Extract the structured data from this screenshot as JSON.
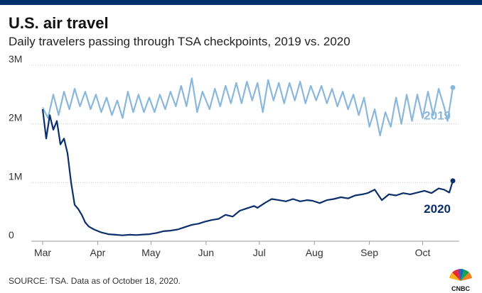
{
  "header": {
    "title": "U.S. air travel",
    "subtitle": "Daily travelers passing through TSA checkpoints, 2019 vs. 2020"
  },
  "footer": {
    "source": "SOURCE: TSA. Data as of October 18, 2020.",
    "logo_text": "CNBC"
  },
  "colors": {
    "top_bar": "#002f6c",
    "series_2019": "#8ab8db",
    "series_2020": "#0b2f6b",
    "gridline": "#cccccc"
  },
  "chart_data": {
    "type": "line",
    "title": "U.S. air travel",
    "subtitle": "Daily travelers passing through TSA checkpoints, 2019 vs. 2020",
    "xlabel": "",
    "ylabel": "",
    "x_tick_labels": [
      "Mar",
      "Apr",
      "May",
      "Jun",
      "Jul",
      "Aug",
      "Sep",
      "Oct"
    ],
    "x_tick_dates": [
      "2020-03-01",
      "2020-04-01",
      "2020-05-01",
      "2020-06-01",
      "2020-07-01",
      "2020-08-01",
      "2020-09-01",
      "2020-10-01"
    ],
    "y_ticks": [
      0,
      1000000,
      2000000,
      3000000
    ],
    "y_tick_labels": [
      "0",
      "1M",
      "2M",
      "3M"
    ],
    "xlim": [
      "2020-03-01",
      "2020-10-18"
    ],
    "ylim": [
      0,
      3000000
    ],
    "grid": "horizontal",
    "series": [
      {
        "name": "2019",
        "color": "#8ab8db",
        "points": [
          [
            "2020-03-01",
            2280000
          ],
          [
            "2020-03-04",
            2100000
          ],
          [
            "2020-03-07",
            2500000
          ],
          [
            "2020-03-10",
            2150000
          ],
          [
            "2020-03-13",
            2550000
          ],
          [
            "2020-03-16",
            2250000
          ],
          [
            "2020-03-19",
            2600000
          ],
          [
            "2020-03-22",
            2300000
          ],
          [
            "2020-03-25",
            2550000
          ],
          [
            "2020-03-28",
            2250000
          ],
          [
            "2020-03-31",
            2500000
          ],
          [
            "2020-04-03",
            2200000
          ],
          [
            "2020-04-06",
            2450000
          ],
          [
            "2020-04-09",
            2150000
          ],
          [
            "2020-04-12",
            2400000
          ],
          [
            "2020-04-15",
            2100000
          ],
          [
            "2020-04-18",
            2550000
          ],
          [
            "2020-04-21",
            2200000
          ],
          [
            "2020-04-24",
            2500000
          ],
          [
            "2020-04-27",
            2200000
          ],
          [
            "2020-04-30",
            2450000
          ],
          [
            "2020-05-03",
            2200000
          ],
          [
            "2020-05-06",
            2500000
          ],
          [
            "2020-05-09",
            2250000
          ],
          [
            "2020-05-12",
            2550000
          ],
          [
            "2020-05-15",
            2300000
          ],
          [
            "2020-05-18",
            2650000
          ],
          [
            "2020-05-21",
            2300000
          ],
          [
            "2020-05-24",
            2780000
          ],
          [
            "2020-05-27",
            2200000
          ],
          [
            "2020-05-30",
            2550000
          ],
          [
            "2020-06-03",
            2250000
          ],
          [
            "2020-06-06",
            2600000
          ],
          [
            "2020-06-09",
            2300000
          ],
          [
            "2020-06-12",
            2650000
          ],
          [
            "2020-06-15",
            2350000
          ],
          [
            "2020-06-18",
            2700000
          ],
          [
            "2020-06-21",
            2350000
          ],
          [
            "2020-06-24",
            2720000
          ],
          [
            "2020-06-27",
            2400000
          ],
          [
            "2020-06-30",
            2700000
          ],
          [
            "2020-07-03",
            2200000
          ],
          [
            "2020-07-06",
            2750000
          ],
          [
            "2020-07-09",
            2400000
          ],
          [
            "2020-07-12",
            2700000
          ],
          [
            "2020-07-15",
            2350000
          ],
          [
            "2020-07-18",
            2700000
          ],
          [
            "2020-07-21",
            2400000
          ],
          [
            "2020-07-24",
            2720000
          ],
          [
            "2020-07-27",
            2350000
          ],
          [
            "2020-07-30",
            2650000
          ],
          [
            "2020-08-02",
            2400000
          ],
          [
            "2020-08-05",
            2650000
          ],
          [
            "2020-08-08",
            2350000
          ],
          [
            "2020-08-11",
            2600000
          ],
          [
            "2020-08-14",
            2300000
          ],
          [
            "2020-08-17",
            2550000
          ],
          [
            "2020-08-20",
            2250000
          ],
          [
            "2020-08-23",
            2500000
          ],
          [
            "2020-08-26",
            2150000
          ],
          [
            "2020-08-29",
            2450000
          ],
          [
            "2020-09-01",
            1950000
          ],
          [
            "2020-09-04",
            2250000
          ],
          [
            "2020-09-07",
            1800000
          ],
          [
            "2020-09-10",
            2200000
          ],
          [
            "2020-09-13",
            1950000
          ],
          [
            "2020-09-16",
            2450000
          ],
          [
            "2020-09-19",
            2000000
          ],
          [
            "2020-09-22",
            2500000
          ],
          [
            "2020-09-25",
            2050000
          ],
          [
            "2020-09-28",
            2500000
          ],
          [
            "2020-10-01",
            2100000
          ],
          [
            "2020-10-04",
            2550000
          ],
          [
            "2020-10-07",
            2150000
          ],
          [
            "2020-10-10",
            2600000
          ],
          [
            "2020-10-13",
            2300000
          ],
          [
            "2020-10-15",
            2050000
          ],
          [
            "2020-10-18",
            2620000
          ]
        ]
      },
      {
        "name": "2020",
        "color": "#0b2f6b",
        "points": [
          [
            "2020-03-01",
            2250000
          ],
          [
            "2020-03-03",
            1750000
          ],
          [
            "2020-03-05",
            2150000
          ],
          [
            "2020-03-07",
            1900000
          ],
          [
            "2020-03-09",
            2050000
          ],
          [
            "2020-03-11",
            1650000
          ],
          [
            "2020-03-13",
            1750000
          ],
          [
            "2020-03-15",
            1500000
          ],
          [
            "2020-03-17",
            1000000
          ],
          [
            "2020-03-19",
            620000
          ],
          [
            "2020-03-21",
            550000
          ],
          [
            "2020-03-23",
            450000
          ],
          [
            "2020-03-25",
            320000
          ],
          [
            "2020-03-27",
            250000
          ],
          [
            "2020-03-30",
            200000
          ],
          [
            "2020-04-03",
            150000
          ],
          [
            "2020-04-07",
            120000
          ],
          [
            "2020-04-11",
            110000
          ],
          [
            "2020-04-15",
            100000
          ],
          [
            "2020-04-19",
            110000
          ],
          [
            "2020-04-23",
            105000
          ],
          [
            "2020-04-27",
            115000
          ],
          [
            "2020-04-30",
            120000
          ],
          [
            "2020-05-04",
            140000
          ],
          [
            "2020-05-08",
            170000
          ],
          [
            "2020-05-12",
            180000
          ],
          [
            "2020-05-16",
            200000
          ],
          [
            "2020-05-20",
            240000
          ],
          [
            "2020-05-24",
            280000
          ],
          [
            "2020-05-28",
            300000
          ],
          [
            "2020-05-31",
            330000
          ],
          [
            "2020-06-04",
            360000
          ],
          [
            "2020-06-08",
            380000
          ],
          [
            "2020-06-12",
            450000
          ],
          [
            "2020-06-16",
            420000
          ],
          [
            "2020-06-20",
            520000
          ],
          [
            "2020-06-24",
            560000
          ],
          [
            "2020-06-28",
            600000
          ],
          [
            "2020-06-30",
            570000
          ],
          [
            "2020-07-04",
            650000
          ],
          [
            "2020-07-08",
            720000
          ],
          [
            "2020-07-12",
            700000
          ],
          [
            "2020-07-16",
            680000
          ],
          [
            "2020-07-20",
            720000
          ],
          [
            "2020-07-24",
            680000
          ],
          [
            "2020-07-28",
            700000
          ],
          [
            "2020-07-31",
            690000
          ],
          [
            "2020-08-04",
            650000
          ],
          [
            "2020-08-08",
            700000
          ],
          [
            "2020-08-12",
            720000
          ],
          [
            "2020-08-16",
            750000
          ],
          [
            "2020-08-20",
            730000
          ],
          [
            "2020-08-24",
            780000
          ],
          [
            "2020-08-28",
            800000
          ],
          [
            "2020-08-31",
            820000
          ],
          [
            "2020-09-04",
            880000
          ],
          [
            "2020-09-08",
            700000
          ],
          [
            "2020-09-12",
            800000
          ],
          [
            "2020-09-16",
            780000
          ],
          [
            "2020-09-20",
            820000
          ],
          [
            "2020-09-24",
            800000
          ],
          [
            "2020-09-28",
            830000
          ],
          [
            "2020-10-02",
            860000
          ],
          [
            "2020-10-06",
            820000
          ],
          [
            "2020-10-10",
            900000
          ],
          [
            "2020-10-13",
            880000
          ],
          [
            "2020-10-16",
            830000
          ],
          [
            "2020-10-18",
            1030000
          ]
        ]
      }
    ]
  }
}
